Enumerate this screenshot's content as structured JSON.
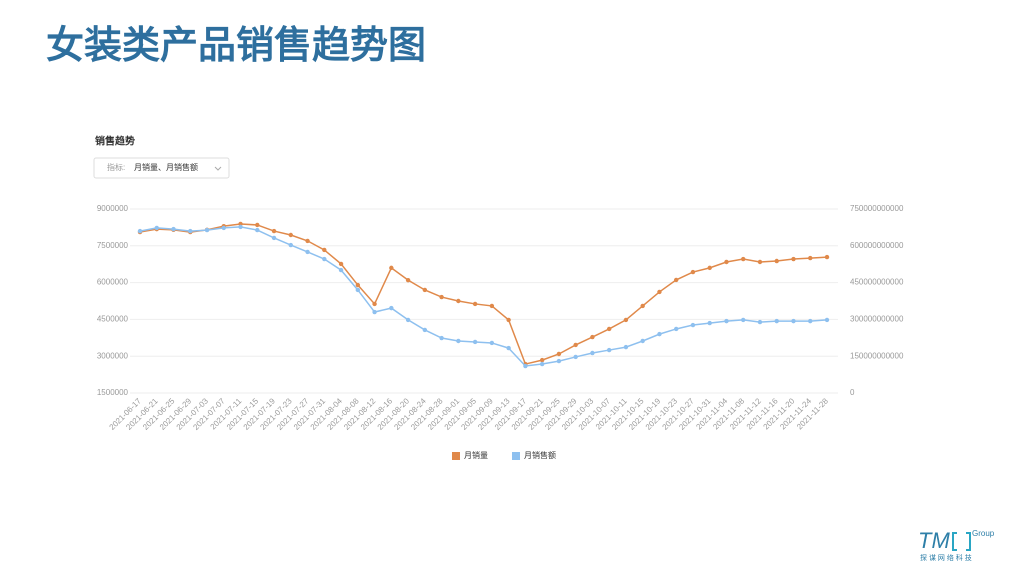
{
  "page": {
    "title": "女装类产品销售趋势图",
    "logo": {
      "name": "TM",
      "group": "Group",
      "tagline": "探 谋 网 络 科 技"
    }
  },
  "panel": {
    "heading": "销售趋势",
    "filter_label": "指标:",
    "filter_value": "月销量、月销售额"
  },
  "chart_data": {
    "type": "line",
    "legend": "bottom",
    "grid": true,
    "categories": [
      "2021-06-17",
      "2021-06-21",
      "2021-06-25",
      "2021-06-29",
      "2021-07-03",
      "2021-07-07",
      "2021-07-11",
      "2021-07-15",
      "2021-07-19",
      "2021-07-23",
      "2021-07-27",
      "2021-07-31",
      "2021-08-04",
      "2021-08-08",
      "2021-08-12",
      "2021-08-16",
      "2021-08-20",
      "2021-08-24",
      "2021-08-28",
      "2021-09-01",
      "2021-09-05",
      "2021-09-09",
      "2021-09-13",
      "2021-09-17",
      "2021-09-21",
      "2021-09-25",
      "2021-09-29",
      "2021-10-03",
      "2021-10-07",
      "2021-10-11",
      "2021-10-15",
      "2021-10-19",
      "2021-10-23",
      "2021-10-27",
      "2021-10-31",
      "2021-11-04",
      "2021-11-08",
      "2021-11-12",
      "2021-11-16",
      "2021-11-20",
      "2021-11-24",
      "2021-11-28"
    ],
    "ylim": [
      1500000,
      9000000
    ],
    "yticks": [
      1500000,
      3000000,
      4500000,
      6000000,
      7500000,
      9000000
    ],
    "y2lim": [
      0,
      750000000000
    ],
    "y2ticks": [
      0,
      150000000000,
      300000000000,
      450000000000,
      600000000000,
      750000000000
    ],
    "series": [
      {
        "name": "月销量",
        "color": "#e0894a",
        "values": [
          8060000,
          8180000,
          8150000,
          8060000,
          8150000,
          8300000,
          8390000,
          8350000,
          8100000,
          7940000,
          7700000,
          7330000,
          6760000,
          5900000,
          5130000,
          6600000,
          6100000,
          5700000,
          5410000,
          5250000,
          5130000,
          5050000,
          4480000,
          2680000,
          2840000,
          3090000,
          3460000,
          3780000,
          4110000,
          4480000,
          5050000,
          5620000,
          6110000,
          6430000,
          6600000,
          6840000,
          6960000,
          6840000,
          6880000,
          6960000,
          7000000,
          7040000
        ]
      },
      {
        "name": "月销售额",
        "color": "#8ec0ef",
        "axis": "y2",
        "values": [
          660000000000,
          673000000000,
          668000000000,
          660000000000,
          664000000000,
          673000000000,
          677000000000,
          664000000000,
          632000000000,
          603000000000,
          575000000000,
          546000000000,
          501000000000,
          420000000000,
          330000000000,
          346000000000,
          298000000000,
          257000000000,
          224000000000,
          212000000000,
          208000000000,
          204000000000,
          183000000000,
          110000000000,
          118000000000,
          130000000000,
          147000000000,
          163000000000,
          175000000000,
          187000000000,
          212000000000,
          240000000000,
          261000000000,
          277000000000,
          285000000000,
          293000000000,
          298000000000,
          289000000000,
          293000000000,
          293000000000,
          293000000000,
          298000000000
        ]
      }
    ]
  }
}
